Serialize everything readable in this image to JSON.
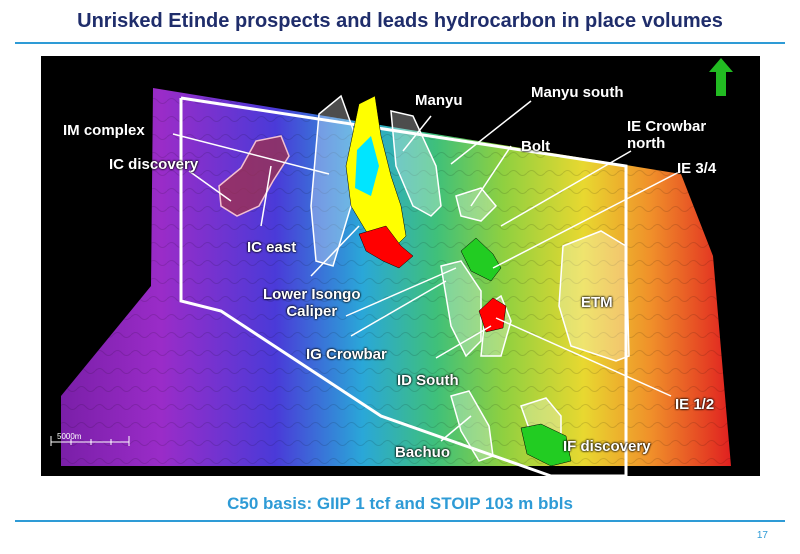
{
  "slide": {
    "title": "Unrisked Etinde prospects and leads hydrocarbon in place volumes",
    "subtitle": "C50 basis: GIIP 1 tcf and STOIP 103 m bbls",
    "page_number": "17"
  },
  "map": {
    "scale_bar_label": "5000m",
    "north_arrow": "north-arrow-icon",
    "colors": {
      "oil_prospect": "#ffff00",
      "gas_prospect": "#ff0000",
      "gas_discovery": "#22cc22",
      "oil_leg": "#00e5ff",
      "lead_outline": "#ffffff",
      "ic_discovery": "#a0304a",
      "north_arrow": "#22bb22"
    },
    "labels": {
      "manyu": "Manyu",
      "manyu_south": "Manyu south",
      "im_complex": "IM complex",
      "bolt": "Bolt",
      "ie_crowbar_north": "IE Crowbar\nnorth",
      "ic_discovery": "IC discovery",
      "ie_3_4": "IE 3/4",
      "ic_east": "IC east",
      "etm": "ETM",
      "lower_isongo": "Lower Isongo\nCaliper",
      "ig_crowbar": "IG Crowbar",
      "id_south": "ID South",
      "ie_1_2": "IE 1/2",
      "bachuo": "Bachuo",
      "if_discovery": "IF discovery"
    }
  }
}
